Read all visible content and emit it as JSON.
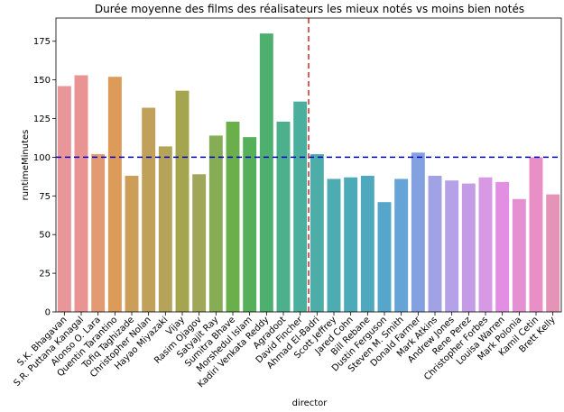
{
  "chart_data": {
    "type": "bar",
    "title": "Durée moyenne des films des réalisateurs les mieux notés vs moins bien notés",
    "xlabel": "director",
    "ylabel": "runtimeMinutes",
    "ylim": [
      0,
      190
    ],
    "yticks": [
      0,
      25,
      50,
      75,
      100,
      125,
      150,
      175
    ],
    "categories": [
      "S.K. Bhagavan",
      "S.R. Puttana Kanagal",
      "Alonso O. Lara",
      "Quentin Tarantino",
      "Tofiq Taghizade",
      "Christopher Nolan",
      "Hayao Miyazaki",
      "Vijay",
      "Rasim Ojagov",
      "Satyajit Ray",
      "Sumitra Bhave",
      "Morshedul Islam",
      "Kadiri Venkata Reddy",
      "Agradoot",
      "David Fincher",
      "Ahmad El-Badri",
      "Scott Jeffrey",
      "Jared Cohn",
      "Bill Rebane",
      "Dustin Ferguson",
      "Steven M. Smith",
      "Donald Farmer",
      "Mark Atkins",
      "Andrew Jones",
      "Rene Perez",
      "Christopher Forbes",
      "Louisa Warren",
      "Mark Polonia",
      "Kamil Cetin",
      "Brett Kelly"
    ],
    "values": [
      146,
      153,
      102,
      152,
      88,
      132,
      107,
      143,
      89,
      114,
      123,
      113,
      180,
      123,
      136,
      102,
      86,
      87,
      88,
      71,
      86,
      103,
      88,
      85,
      83,
      87,
      84,
      73,
      100,
      76
    ],
    "colors": [
      "#e8969a",
      "#e99493",
      "#e29a73",
      "#dd9b59",
      "#cd9e59",
      "#c1a159",
      "#b4a359",
      "#a6a54f",
      "#a0a75a",
      "#86ad55",
      "#6aaf4a",
      "#56b05a",
      "#4eb06e",
      "#4cb08c",
      "#4ab09d",
      "#4dada8",
      "#4dabb2",
      "#4daab8",
      "#50a8bf",
      "#56a6cb",
      "#66a3d6",
      "#83a0e0",
      "#a1a1e6",
      "#b4a1e8",
      "#c49ce6",
      "#d799e3",
      "#e28ee2",
      "#e690d4",
      "#e88fc6",
      "#e593b6"
    ],
    "hline": {
      "value": 100,
      "color": "#0000cc"
    },
    "vline": {
      "after_index": 14,
      "color": "#d62728"
    },
    "grid": false,
    "legend": "none"
  }
}
